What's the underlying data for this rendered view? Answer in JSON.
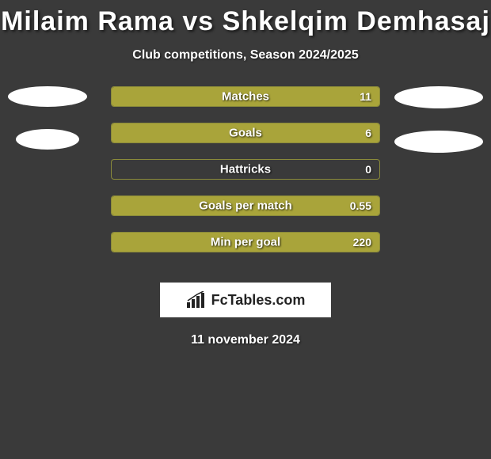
{
  "header": {
    "title": "Milaim Rama vs Shkelqim Demhasaj",
    "subtitle": "Club competitions, Season 2024/2025"
  },
  "chart": {
    "type": "bar",
    "bar_border_color": "#8a8a3a",
    "bar_fill_color": "#a9a43a",
    "background_color": "#3a3a3a",
    "text_color": "#ffffff",
    "label_fontsize": 15,
    "value_fontsize": 14,
    "bars": [
      {
        "label": "Matches",
        "value": "11",
        "fill_pct": 100
      },
      {
        "label": "Goals",
        "value": "6",
        "fill_pct": 100
      },
      {
        "label": "Hattricks",
        "value": "0",
        "fill_pct": 0
      },
      {
        "label": "Goals per match",
        "value": "0.55",
        "fill_pct": 100
      },
      {
        "label": "Min per goal",
        "value": "220",
        "fill_pct": 100
      }
    ],
    "left_ovals_count": 2,
    "right_ovals_count": 2,
    "oval_color": "#ffffff"
  },
  "brand": {
    "name": "FcTables.com",
    "icon": "bar-chart-icon"
  },
  "footer": {
    "date": "11 november 2024"
  }
}
